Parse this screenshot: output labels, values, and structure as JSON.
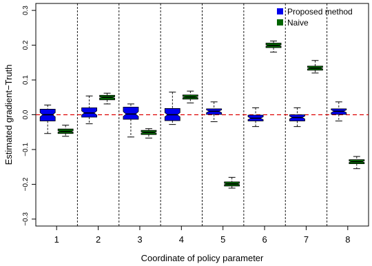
{
  "chart_data": {
    "type": "boxplot",
    "xlabel": "Coordinate of policy parameter",
    "ylabel": "Estimated gradient−Truth",
    "ylim": [
      -0.32,
      0.32
    ],
    "yticks": [
      -0.3,
      -0.2,
      -0.1,
      0.0,
      0.1,
      0.2,
      0.3
    ],
    "ytick_labels": [
      "−0.3",
      "−0.2",
      "−0.1",
      "0.0",
      "0.1",
      "0.2",
      "0.3"
    ],
    "categories": [
      "1",
      "2",
      "3",
      "4",
      "5",
      "6",
      "7",
      "8"
    ],
    "reference_line": {
      "y": 0.0,
      "style": "dashed",
      "color": "#dd0000"
    },
    "group_separators": "dotted vertical lines between coordinates",
    "legend": {
      "position": "top-right"
    },
    "series": [
      {
        "name": "Proposed method",
        "color": "#0000ee",
        "boxes": [
          {
            "q1": -0.018,
            "median": 0.0,
            "q3": 0.016,
            "whisker_low": -0.054,
            "whisker_high": 0.028,
            "notch_low": -0.006,
            "notch_high": 0.006
          },
          {
            "q1": -0.007,
            "median": 0.005,
            "q3": 0.02,
            "whisker_low": -0.026,
            "whisker_high": 0.054,
            "notch_low": -0.001,
            "notch_high": 0.011
          },
          {
            "q1": -0.013,
            "median": 0.002,
            "q3": 0.022,
            "whisker_low": -0.064,
            "whisker_high": 0.031,
            "notch_low": -0.005,
            "notch_high": 0.009
          },
          {
            "q1": -0.017,
            "median": 0.0,
            "q3": 0.018,
            "whisker_low": -0.028,
            "whisker_high": 0.065,
            "notch_low": -0.006,
            "notch_high": 0.006
          },
          {
            "q1": 0.001,
            "median": 0.01,
            "q3": 0.017,
            "whisker_low": -0.02,
            "whisker_high": 0.037,
            "notch_low": 0.006,
            "notch_high": 0.014
          },
          {
            "q1": -0.018,
            "median": -0.01,
            "q3": -0.001,
            "whisker_low": -0.034,
            "whisker_high": 0.02,
            "notch_low": -0.014,
            "notch_high": -0.006
          },
          {
            "q1": -0.018,
            "median": -0.008,
            "q3": 0.0,
            "whisker_low": -0.034,
            "whisker_high": 0.02,
            "notch_low": -0.012,
            "notch_high": -0.004
          },
          {
            "q1": 0.001,
            "median": 0.01,
            "q3": 0.017,
            "whisker_low": -0.018,
            "whisker_high": 0.037,
            "notch_low": 0.006,
            "notch_high": 0.014
          }
        ]
      },
      {
        "name": "Naive",
        "color": "#006400",
        "boxes": [
          {
            "q1": -0.054,
            "median": -0.048,
            "q3": -0.041,
            "whisker_low": -0.062,
            "whisker_high": -0.03,
            "notch_low": -0.05,
            "notch_high": -0.046
          },
          {
            "q1": 0.043,
            "median": 0.05,
            "q3": 0.056,
            "whisker_low": 0.031,
            "whisker_high": 0.062,
            "notch_low": 0.048,
            "notch_high": 0.052
          },
          {
            "q1": -0.057,
            "median": -0.051,
            "q3": -0.045,
            "whisker_low": -0.067,
            "whisker_high": -0.04,
            "notch_low": -0.053,
            "notch_high": -0.049
          },
          {
            "q1": 0.045,
            "median": 0.051,
            "q3": 0.057,
            "whisker_low": 0.034,
            "whisker_high": 0.068,
            "notch_low": 0.049,
            "notch_high": 0.053
          },
          {
            "q1": -0.205,
            "median": -0.199,
            "q3": -0.193,
            "whisker_low": -0.211,
            "whisker_high": -0.18,
            "notch_low": -0.201,
            "notch_high": -0.197
          },
          {
            "q1": 0.193,
            "median": 0.199,
            "q3": 0.206,
            "whisker_low": 0.18,
            "whisker_high": 0.212,
            "notch_low": 0.197,
            "notch_high": 0.201
          },
          {
            "q1": 0.128,
            "median": 0.134,
            "q3": 0.14,
            "whisker_low": 0.12,
            "whisker_high": 0.156,
            "notch_low": 0.132,
            "notch_high": 0.136
          },
          {
            "q1": -0.141,
            "median": -0.135,
            "q3": -0.129,
            "whisker_low": -0.155,
            "whisker_high": -0.12,
            "notch_low": -0.137,
            "notch_high": -0.133
          }
        ]
      }
    ]
  }
}
